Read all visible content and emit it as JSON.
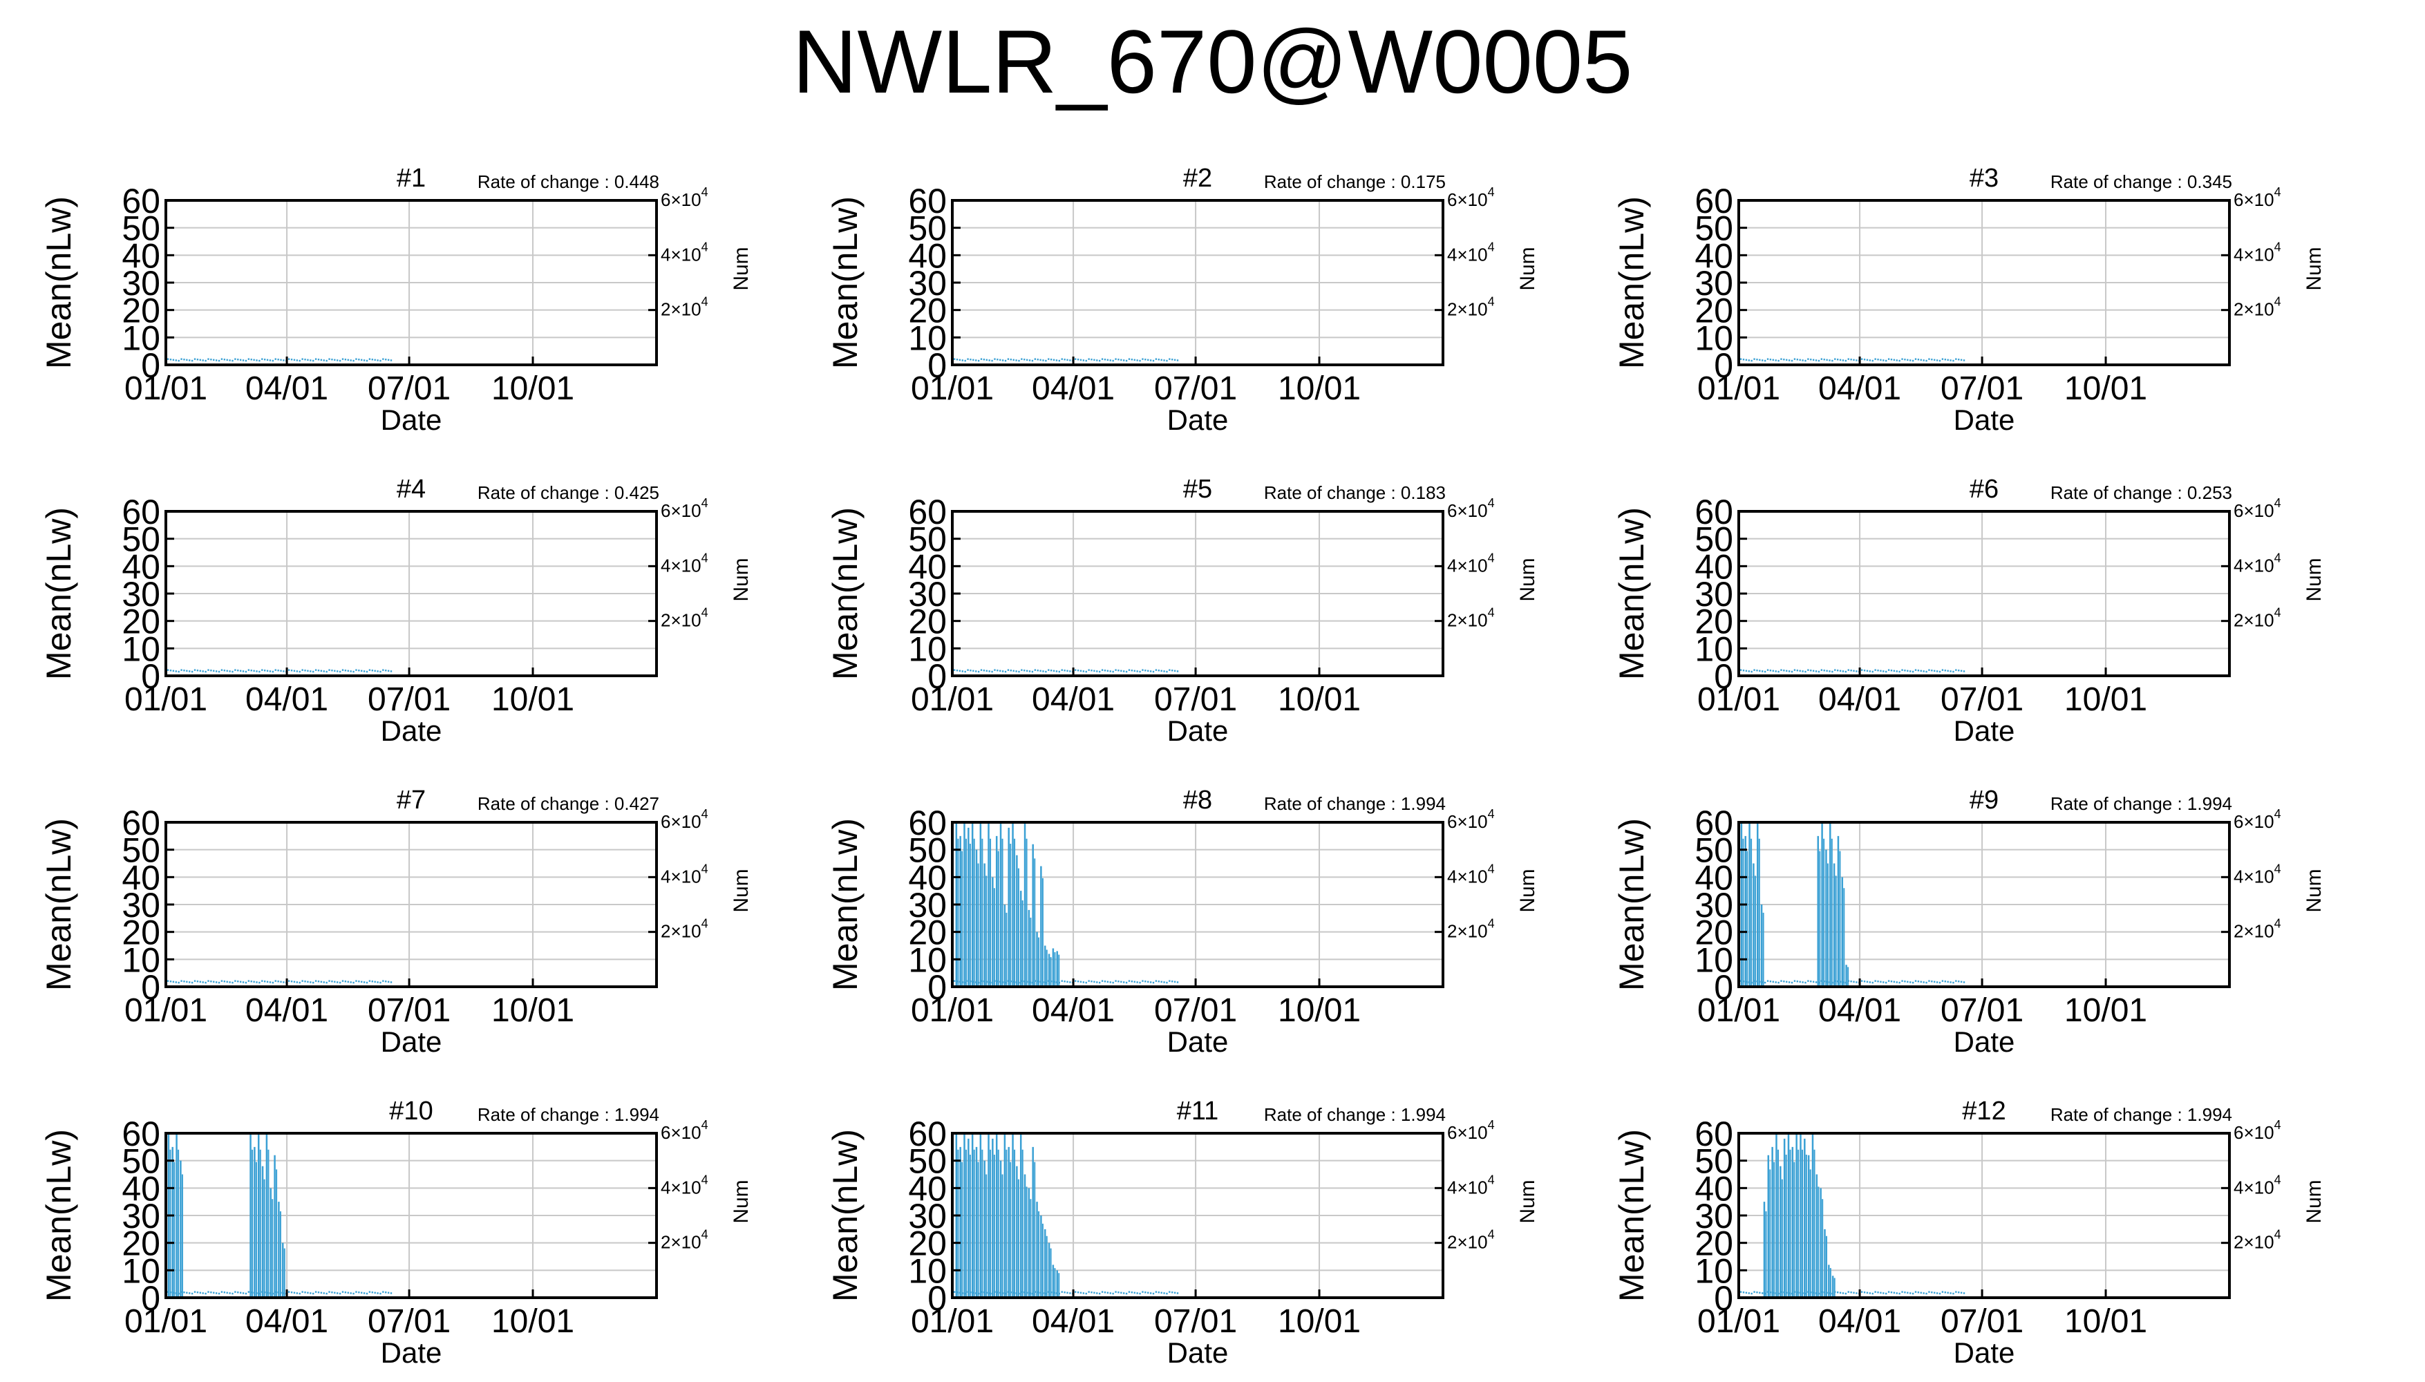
{
  "title": "NWLR_670@W0005",
  "axes_text": {
    "ylabel": "Mean(nLw)",
    "xlabel": "Date",
    "y2label": "Num",
    "yticks": [
      "0",
      "10",
      "20",
      "30",
      "40",
      "50",
      "60"
    ],
    "xticks": [
      "01/01",
      "04/01",
      "07/01",
      "10/01"
    ],
    "y2ticks": [
      {
        "value": 20000,
        "mantissa": "2×10",
        "exp": "4"
      },
      {
        "value": 40000,
        "mantissa": "4×10",
        "exp": "4"
      },
      {
        "value": 60000,
        "mantissa": "6×10",
        "exp": "4"
      }
    ],
    "rate_prefix": "Rate of change : "
  },
  "colors": {
    "series": "#3aa0d4",
    "grid": "#c8c8c8",
    "frame": "#000000"
  },
  "chart_data": [
    {
      "type": "line",
      "title": "#1",
      "rate_of_change": "0.448",
      "xlabel": "Date",
      "ylabel": "Mean(nLw)",
      "y2label": "Num",
      "ylim": [
        0,
        60
      ],
      "y2lim": [
        0,
        60000
      ],
      "xlim": [
        1,
        366
      ],
      "grid": true,
      "baseline": 1.5,
      "data_end_day": 168,
      "spikes": []
    },
    {
      "type": "line",
      "title": "#2",
      "rate_of_change": "0.175",
      "xlabel": "Date",
      "ylabel": "Mean(nLw)",
      "y2label": "Num",
      "ylim": [
        0,
        60
      ],
      "y2lim": [
        0,
        60000
      ],
      "xlim": [
        1,
        366
      ],
      "grid": true,
      "baseline": 1.5,
      "data_end_day": 168,
      "spikes": []
    },
    {
      "type": "line",
      "title": "#3",
      "rate_of_change": "0.345",
      "xlabel": "Date",
      "ylabel": "Mean(nLw)",
      "y2label": "Num",
      "ylim": [
        0,
        60
      ],
      "y2lim": [
        0,
        60000
      ],
      "xlim": [
        1,
        366
      ],
      "grid": true,
      "baseline": 1.5,
      "data_end_day": 168,
      "spikes": []
    },
    {
      "type": "line",
      "title": "#4",
      "rate_of_change": "0.425",
      "xlabel": "Date",
      "ylabel": "Mean(nLw)",
      "y2label": "Num",
      "ylim": [
        0,
        60
      ],
      "y2lim": [
        0,
        60000
      ],
      "xlim": [
        1,
        366
      ],
      "grid": true,
      "baseline": 1.5,
      "data_end_day": 168,
      "spikes": []
    },
    {
      "type": "line",
      "title": "#5",
      "rate_of_change": "0.183",
      "xlabel": "Date",
      "ylabel": "Mean(nLw)",
      "y2label": "Num",
      "ylim": [
        0,
        60
      ],
      "y2lim": [
        0,
        60000
      ],
      "xlim": [
        1,
        366
      ],
      "grid": true,
      "baseline": 1.5,
      "data_end_day": 168,
      "spikes": []
    },
    {
      "type": "line",
      "title": "#6",
      "rate_of_change": "0.253",
      "xlabel": "Date",
      "ylabel": "Mean(nLw)",
      "y2label": "Num",
      "ylim": [
        0,
        60
      ],
      "y2lim": [
        0,
        60000
      ],
      "xlim": [
        1,
        366
      ],
      "grid": true,
      "baseline": 1.5,
      "data_end_day": 168,
      "spikes": []
    },
    {
      "type": "line",
      "title": "#7",
      "rate_of_change": "0.427",
      "xlabel": "Date",
      "ylabel": "Mean(nLw)",
      "y2label": "Num",
      "ylim": [
        0,
        60
      ],
      "y2lim": [
        0,
        60000
      ],
      "xlim": [
        1,
        366
      ],
      "grid": true,
      "baseline": 1.5,
      "data_end_day": 168,
      "spikes": []
    },
    {
      "type": "line",
      "title": "#8",
      "rate_of_change": "1.994",
      "xlabel": "Date",
      "ylabel": "Mean(nLw)",
      "y2label": "Num",
      "ylim": [
        0,
        60
      ],
      "y2lim": [
        0,
        60000
      ],
      "xlim": [
        1,
        366
      ],
      "grid": true,
      "baseline": 1.5,
      "data_end_day": 168,
      "spikes": [
        [
          4,
          60
        ],
        [
          7,
          55
        ],
        [
          10,
          60
        ],
        [
          13,
          58
        ],
        [
          16,
          60
        ],
        [
          19,
          50
        ],
        [
          22,
          60
        ],
        [
          25,
          45
        ],
        [
          28,
          60
        ],
        [
          31,
          40
        ],
        [
          34,
          55
        ],
        [
          37,
          60
        ],
        [
          40,
          30
        ],
        [
          43,
          58
        ],
        [
          46,
          60
        ],
        [
          49,
          48
        ],
        [
          52,
          35
        ],
        [
          55,
          60
        ],
        [
          58,
          28
        ],
        [
          61,
          52
        ],
        [
          64,
          20
        ],
        [
          67,
          44
        ],
        [
          70,
          15
        ],
        [
          73,
          12
        ],
        [
          76,
          14
        ],
        [
          79,
          13
        ]
      ]
    },
    {
      "type": "line",
      "title": "#9",
      "rate_of_change": "1.994",
      "xlabel": "Date",
      "ylabel": "Mean(nLw)",
      "y2label": "Num",
      "ylim": [
        0,
        60
      ],
      "y2lim": [
        0,
        60000
      ],
      "xlim": [
        1,
        366
      ],
      "grid": true,
      "baseline": 1.5,
      "data_end_day": 168,
      "spikes": [
        [
          3,
          60
        ],
        [
          6,
          55
        ],
        [
          9,
          60
        ],
        [
          12,
          45
        ],
        [
          15,
          60
        ],
        [
          18,
          30
        ],
        [
          60,
          55
        ],
        [
          63,
          60
        ],
        [
          66,
          50
        ],
        [
          69,
          60
        ],
        [
          72,
          45
        ],
        [
          75,
          55
        ],
        [
          78,
          40
        ],
        [
          81,
          8
        ]
      ]
    },
    {
      "type": "line",
      "title": "#10",
      "rate_of_change": "1.994",
      "xlabel": "Date",
      "ylabel": "Mean(nLw)",
      "y2label": "Num",
      "ylim": [
        0,
        60
      ],
      "y2lim": [
        0,
        60000
      ],
      "xlim": [
        1,
        366
      ],
      "grid": true,
      "baseline": 1.5,
      "data_end_day": 168,
      "spikes": [
        [
          3,
          60
        ],
        [
          6,
          55
        ],
        [
          9,
          60
        ],
        [
          12,
          50
        ],
        [
          64,
          60
        ],
        [
          67,
          55
        ],
        [
          70,
          60
        ],
        [
          73,
          48
        ],
        [
          76,
          60
        ],
        [
          79,
          40
        ],
        [
          82,
          52
        ],
        [
          85,
          35
        ],
        [
          88,
          20
        ]
      ]
    },
    {
      "type": "line",
      "title": "#11",
      "rate_of_change": "1.994",
      "xlabel": "Date",
      "ylabel": "Mean(nLw)",
      "y2label": "Num",
      "ylim": [
        0,
        60
      ],
      "y2lim": [
        0,
        60000
      ],
      "xlim": [
        1,
        366
      ],
      "grid": true,
      "baseline": 1.5,
      "data_end_day": 168,
      "spikes": [
        [
          4,
          60
        ],
        [
          7,
          55
        ],
        [
          10,
          60
        ],
        [
          13,
          58
        ],
        [
          16,
          60
        ],
        [
          19,
          55
        ],
        [
          22,
          60
        ],
        [
          25,
          50
        ],
        [
          28,
          60
        ],
        [
          31,
          58
        ],
        [
          34,
          60
        ],
        [
          37,
          50
        ],
        [
          40,
          60
        ],
        [
          43,
          55
        ],
        [
          46,
          60
        ],
        [
          49,
          48
        ],
        [
          52,
          60
        ],
        [
          55,
          45
        ],
        [
          58,
          40
        ],
        [
          61,
          55
        ],
        [
          64,
          35
        ],
        [
          67,
          30
        ],
        [
          70,
          25
        ],
        [
          73,
          20
        ],
        [
          76,
          12
        ],
        [
          79,
          10
        ]
      ]
    },
    {
      "type": "line",
      "title": "#12",
      "rate_of_change": "1.994",
      "xlabel": "Date",
      "ylabel": "Mean(nLw)",
      "y2label": "Num",
      "ylim": [
        0,
        60
      ],
      "y2lim": [
        0,
        60000
      ],
      "xlim": [
        1,
        366
      ],
      "grid": true,
      "baseline": 1.5,
      "data_end_day": 168,
      "spikes": [
        [
          20,
          35
        ],
        [
          23,
          52
        ],
        [
          26,
          55
        ],
        [
          29,
          60
        ],
        [
          32,
          48
        ],
        [
          35,
          58
        ],
        [
          38,
          60
        ],
        [
          41,
          55
        ],
        [
          44,
          60
        ],
        [
          47,
          60
        ],
        [
          50,
          58
        ],
        [
          53,
          52
        ],
        [
          56,
          60
        ],
        [
          59,
          45
        ],
        [
          62,
          40
        ],
        [
          65,
          25
        ],
        [
          68,
          12
        ],
        [
          71,
          8
        ]
      ]
    }
  ]
}
